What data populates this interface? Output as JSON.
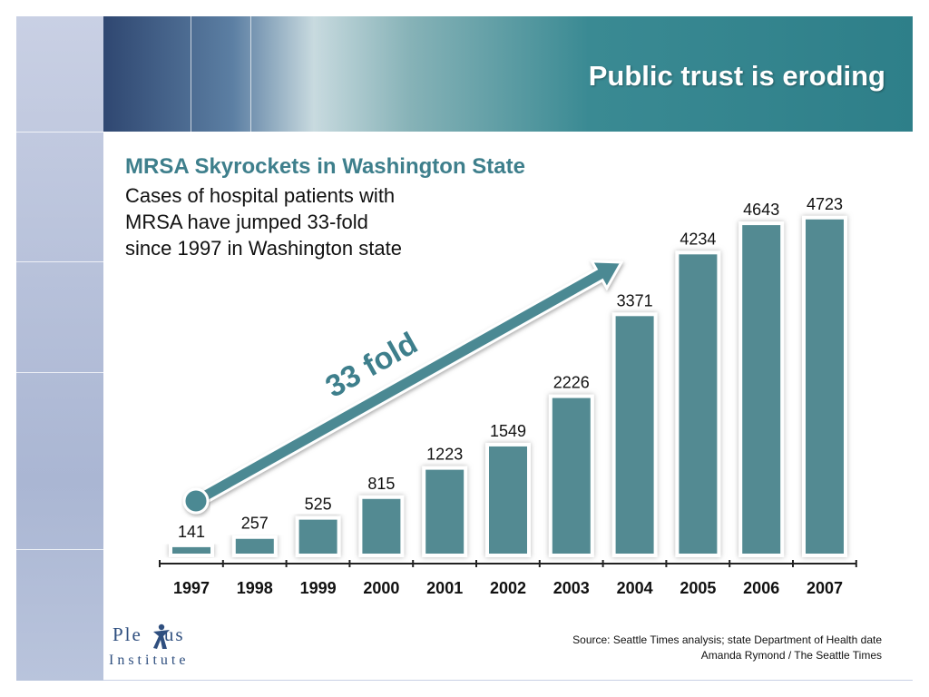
{
  "slide": {
    "title": "Public trust is eroding",
    "source_lines": [
      "Source: Seattle Times analysis; state Department of Health date",
      "Amanda Rymond / The Seattle Times"
    ],
    "logo": {
      "top_left": "Ple",
      "top_right": "us",
      "bottom": "Institute"
    }
  },
  "colors": {
    "bar": "#528a92",
    "bar_outline": "#ffffff",
    "arrow": "#4b8993",
    "accent_text": "#3e7f8c",
    "header_text": "#ffffff"
  },
  "chart_data": {
    "type": "bar",
    "title": "MRSA Skyrockets in Washington State",
    "subtitle_lines": [
      "Cases of hospital patients with",
      "MRSA have jumped 33-fold",
      "since 1997 in Washington state"
    ],
    "categories": [
      "1997",
      "1998",
      "1999",
      "2000",
      "2001",
      "2002",
      "2003",
      "2004",
      "2005",
      "2006",
      "2007"
    ],
    "values": [
      141,
      257,
      525,
      815,
      1223,
      1549,
      2226,
      3371,
      4234,
      4643,
      4723
    ],
    "annotation": "33 fold",
    "xlabel": "",
    "ylabel": "",
    "ylim": [
      0,
      5000
    ],
    "grid": false,
    "legend": "none"
  }
}
